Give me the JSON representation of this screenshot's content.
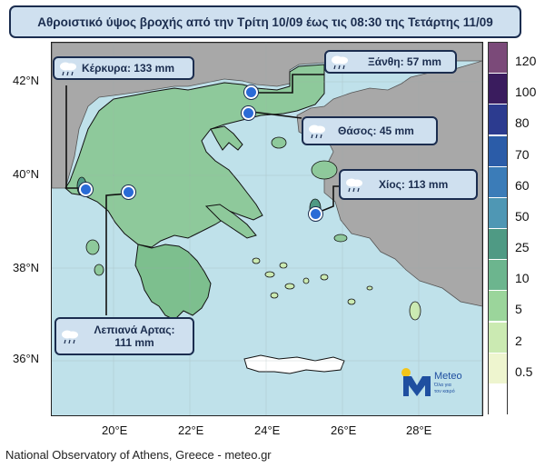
{
  "title": "Αθροιστικό ύψος βροχής από την Τρίτη 10/09 έως τις 08:30 της Τετάρτης 11/09",
  "map": {
    "lat_labels": [
      "42°N",
      "40°N",
      "38°N",
      "36°N"
    ],
    "lon_labels": [
      "20°E",
      "22°E",
      "24°E",
      "26°E",
      "28°E"
    ],
    "sea_color": "#bfe1ea",
    "land_outside_color": "#a8a8a8",
    "land_greece_color": "#8ec99b"
  },
  "legend": {
    "levels": [
      "120",
      "100",
      "80",
      "70",
      "60",
      "50",
      "25",
      "10",
      "5",
      "2",
      "0.5"
    ],
    "colors": [
      "#7b4a79",
      "#3a1c5e",
      "#2c3b8f",
      "#2b5ca8",
      "#3b7cb8",
      "#4f97b4",
      "#4f9a84",
      "#6cb58e",
      "#9bd59b",
      "#cbeab2",
      "#eef5cf",
      "#ffffff"
    ]
  },
  "callouts": [
    {
      "id": "kerkyra",
      "label": "Κέρκυρα: 133 mm",
      "icon": "rain-cloud-icon"
    },
    {
      "id": "xanthi",
      "label": "Ξάνθη: 57 mm",
      "icon": "rain-cloud-icon"
    },
    {
      "id": "thasos",
      "label": "Θάσος: 45 mm",
      "icon": "rain-cloud-icon"
    },
    {
      "id": "chios",
      "label": "Χίος: 113 mm",
      "icon": "rain-cloud-icon"
    },
    {
      "id": "lepiana",
      "label_line1": "Λεπιανά Αρτας:",
      "label_line2": "111 mm",
      "icon": "rain-cloud-icon"
    }
  ],
  "logo": {
    "name": "Meteo",
    "tagline_1": "Όλα για",
    "tagline_2": "τον καιρό",
    "sun_color": "#f5c518",
    "brand_color": "#1f4fa0"
  },
  "footer": "National Observatory of Athens, Greece - meteo.gr"
}
